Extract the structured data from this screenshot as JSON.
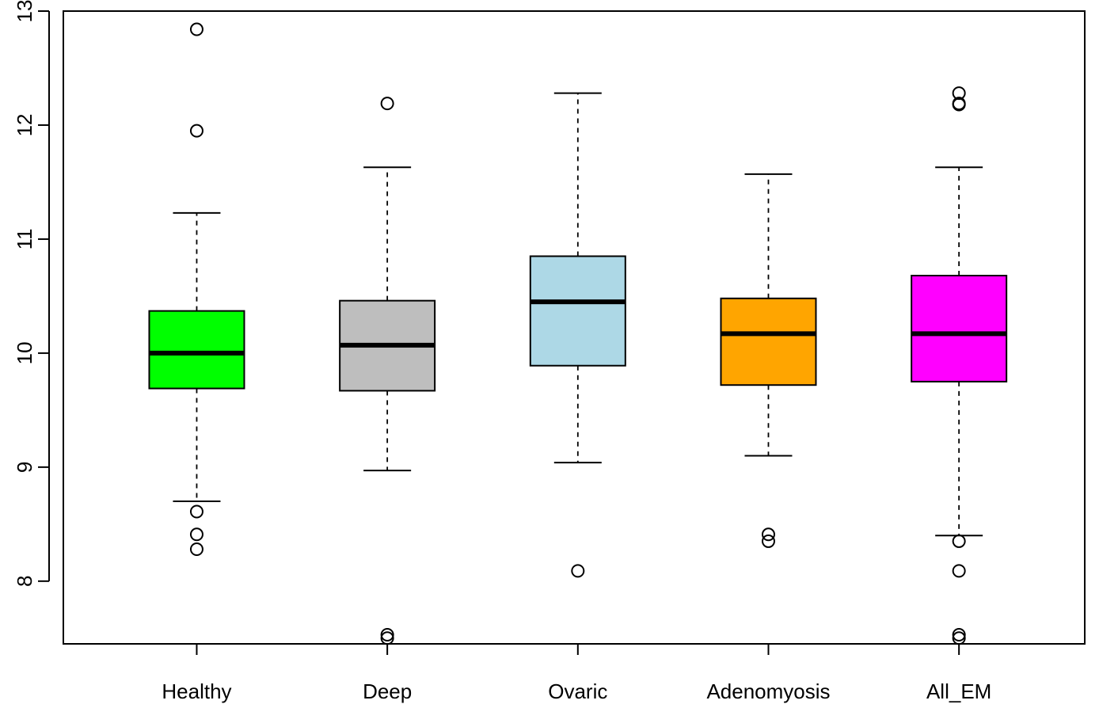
{
  "chart_data": {
    "type": "boxplot",
    "categories": [
      "Healthy",
      "Deep",
      "Ovaric",
      "Adenomyosis",
      "All_EM"
    ],
    "yticks": [
      "8",
      "9",
      "10",
      "11",
      "12",
      "13"
    ],
    "ylim": [
      7.45,
      13.0
    ],
    "grid": false,
    "legend": "none",
    "series": [
      {
        "category": "Healthy",
        "color": "#00ff00",
        "whisker_low": 8.7,
        "q1": 9.69,
        "median": 10.0,
        "q3": 10.37,
        "whisker_high": 11.23,
        "outliers": [
          12.84,
          11.95,
          8.61,
          8.41,
          8.28
        ]
      },
      {
        "category": "Deep",
        "color": "#bebebe",
        "whisker_low": 8.97,
        "q1": 9.67,
        "median": 10.07,
        "q3": 10.46,
        "whisker_high": 11.63,
        "outliers": [
          12.19,
          7.53,
          7.5
        ]
      },
      {
        "category": "Ovaric",
        "color": "#add8e6",
        "whisker_low": 9.04,
        "q1": 9.89,
        "median": 10.45,
        "q3": 10.85,
        "whisker_high": 12.28,
        "outliers": [
          8.09
        ]
      },
      {
        "category": "Adenomyosis",
        "color": "#ffa500",
        "whisker_low": 9.1,
        "q1": 9.72,
        "median": 10.17,
        "q3": 10.48,
        "whisker_high": 11.57,
        "outliers": [
          8.41,
          8.35
        ]
      },
      {
        "category": "All_EM",
        "color": "#ff00ff",
        "whisker_low": 8.4,
        "q1": 9.75,
        "median": 10.17,
        "q3": 10.68,
        "whisker_high": 11.63,
        "outliers": [
          12.28,
          12.19,
          12.18,
          8.35,
          8.09,
          7.53,
          7.5
        ]
      }
    ]
  }
}
